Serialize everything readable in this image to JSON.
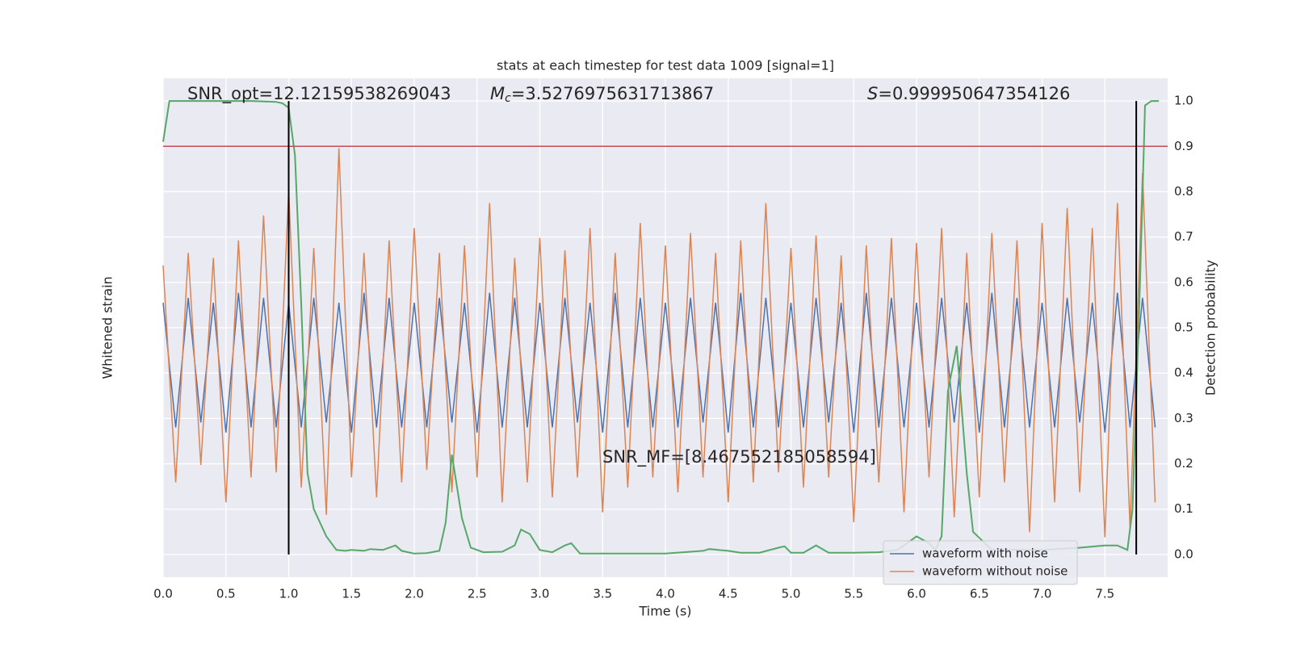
{
  "chart_data": {
    "type": "line",
    "title": "stats at each timestep for test data 1009 [signal=1]",
    "xlabel": "Time (s)",
    "ylabel": "Whitened strain",
    "y2label": "Detection probability",
    "xlim": [
      0,
      8.0
    ],
    "ylim": [
      -1,
      1
    ],
    "y2lim": [
      -0.05,
      1.05
    ],
    "xticks": [
      {
        "value": 0,
        "label": "0.0"
      },
      0.5,
      {
        "value": 1,
        "label": "1.0"
      },
      1.5,
      {
        "value": 2,
        "label": "2.0"
      },
      2.5,
      {
        "value": 3,
        "label": "3.0"
      },
      3.5,
      {
        "value": 4,
        "label": "4.0"
      },
      4.5,
      {
        "value": 5,
        "label": "5.0"
      },
      5.5,
      {
        "value": 6,
        "label": "6.0"
      },
      6.5,
      {
        "value": 7,
        "label": "7.0"
      },
      7.5
    ],
    "y2ticks": [
      {
        "value": 0,
        "label": "0.0"
      },
      0.1,
      0.2,
      0.3,
      0.4,
      0.5,
      0.6,
      0.7,
      0.8,
      0.9,
      {
        "value": 1,
        "label": "1.0"
      }
    ],
    "grid": true,
    "legend": "lower right",
    "series": [
      {
        "name": "waveform with noise",
        "color": "#4c72b0",
        "x": [
          0,
          0.1,
          0.2,
          0.3,
          0.4,
          0.5,
          0.6,
          0.7,
          0.8,
          0.9,
          1,
          1.1,
          1.2,
          1.3,
          1.4,
          1.5,
          1.6,
          1.7,
          1.8,
          1.9,
          2,
          2.1,
          2.2,
          2.3,
          2.4,
          2.5,
          2.6,
          2.7,
          2.8,
          2.9,
          3,
          3.1,
          3.2,
          3.3,
          3.4,
          3.5,
          3.6,
          3.7,
          3.8,
          3.9,
          4,
          4.1,
          4.2,
          4.3,
          4.4,
          4.5,
          4.6,
          4.7,
          4.8,
          4.9,
          5,
          5.1,
          5.2,
          5.3,
          5.4,
          5.5,
          5.6,
          5.7,
          5.8,
          5.9,
          6,
          6.1,
          6.2,
          6.3,
          6.4,
          6.5,
          6.6,
          6.7,
          6.8,
          6.9,
          7,
          7.1,
          7.2,
          7.3,
          7.4,
          7.5,
          7.6,
          7.7,
          7.8,
          7.9
        ],
        "values": [
          0.1,
          -0.4,
          0.12,
          -0.38,
          0.1,
          -0.42,
          0.14,
          -0.4,
          0.12,
          -0.4,
          0.1,
          -0.4,
          0.12,
          -0.38,
          0.1,
          -0.42,
          0.14,
          -0.4,
          0.12,
          -0.4,
          0.1,
          -0.4,
          0.12,
          -0.38,
          0.1,
          -0.42,
          0.14,
          -0.4,
          0.12,
          -0.4,
          0.1,
          -0.4,
          0.12,
          -0.38,
          0.1,
          -0.42,
          0.14,
          -0.4,
          0.12,
          -0.4,
          0.1,
          -0.4,
          0.12,
          -0.38,
          0.1,
          -0.42,
          0.14,
          -0.4,
          0.12,
          -0.4,
          0.1,
          -0.4,
          0.12,
          -0.38,
          0.1,
          -0.42,
          0.14,
          -0.4,
          0.12,
          -0.4,
          0.1,
          -0.4,
          0.12,
          -0.38,
          0.1,
          -0.42,
          0.14,
          -0.4,
          0.12,
          -0.4,
          0.1,
          -0.4,
          0.12,
          -0.38,
          0.1,
          -0.42,
          0.14,
          -0.4,
          0.12,
          -0.4
        ]
      },
      {
        "name": "waveform without noise",
        "color": "#dd8452",
        "x": [
          0,
          0.1,
          0.2,
          0.3,
          0.4,
          0.5,
          0.6,
          0.7,
          0.8,
          0.9,
          1,
          1.1,
          1.2,
          1.3,
          1.4,
          1.5,
          1.6,
          1.7,
          1.8,
          1.9,
          2,
          2.1,
          2.2,
          2.3,
          2.4,
          2.5,
          2.6,
          2.7,
          2.8,
          2.9,
          3,
          3.1,
          3.2,
          3.3,
          3.4,
          3.5,
          3.6,
          3.7,
          3.8,
          3.9,
          4,
          4.1,
          4.2,
          4.3,
          4.4,
          4.5,
          4.6,
          4.7,
          4.8,
          4.9,
          5,
          5.1,
          5.2,
          5.3,
          5.4,
          5.5,
          5.6,
          5.7,
          5.8,
          5.9,
          6,
          6.1,
          6.2,
          6.3,
          6.4,
          6.5,
          6.6,
          6.7,
          6.8,
          6.9,
          7,
          7.1,
          7.2,
          7.3,
          7.4,
          7.5,
          7.6,
          7.7,
          7.8,
          7.9
        ],
        "values": [
          0.25,
          -0.62,
          0.3,
          -0.55,
          0.28,
          -0.7,
          0.35,
          -0.6,
          0.45,
          -0.58,
          0.55,
          -0.64,
          0.32,
          -0.75,
          0.72,
          -0.6,
          0.3,
          -0.68,
          0.35,
          -0.62,
          0.4,
          -0.57,
          0.3,
          -0.66,
          0.33,
          -0.6,
          0.5,
          -0.7,
          0.28,
          -0.62,
          0.36,
          -0.68,
          0.31,
          -0.6,
          0.4,
          -0.74,
          0.3,
          -0.64,
          0.42,
          -0.6,
          0.33,
          -0.66,
          0.38,
          -0.6,
          0.3,
          -0.7,
          0.35,
          -0.62,
          0.5,
          -0.58,
          0.32,
          -0.64,
          0.37,
          -0.6,
          0.29,
          -0.78,
          0.33,
          -0.62,
          0.36,
          -0.74,
          0.34,
          -0.6,
          0.4,
          -0.76,
          0.3,
          -0.68,
          0.38,
          -0.62,
          0.35,
          -0.82,
          0.42,
          -0.7,
          0.48,
          -0.66,
          0.4,
          -0.84,
          0.5,
          -0.8,
          0.62,
          -0.7
        ]
      },
      {
        "color": "#55a868",
        "axis": "y2",
        "x": [
          0,
          0.05,
          0.1,
          0.3,
          0.5,
          0.7,
          0.9,
          0.95,
          1,
          1.05,
          1.1,
          1.15,
          1.2,
          1.3,
          1.38,
          1.45,
          1.5,
          1.6,
          1.65,
          1.75,
          1.85,
          1.9,
          2,
          2.1,
          2.2,
          2.25,
          2.3,
          2.38,
          2.45,
          2.55,
          2.7,
          2.8,
          2.85,
          2.92,
          3,
          3.1,
          3.2,
          3.25,
          3.32,
          3.5,
          4,
          4.3,
          4.35,
          4.5,
          4.6,
          4.75,
          4.9,
          4.95,
          5,
          5.1,
          5.2,
          5.3,
          5.5,
          5.7,
          5.85,
          6,
          6.1,
          6.15,
          6.2,
          6.25,
          6.32,
          6.4,
          6.45,
          6.6,
          7,
          7.3,
          7.5,
          7.6,
          7.68,
          7.72,
          7.78,
          7.82,
          7.87,
          7.93
        ],
        "values": [
          0.91,
          1,
          1,
          1,
          1,
          1,
          0.998,
          0.995,
          0.985,
          0.88,
          0.55,
          0.18,
          0.1,
          0.04,
          0.01,
          0.008,
          0.01,
          0.008,
          0.012,
          0.01,
          0.02,
          0.008,
          0.002,
          0.003,
          0.008,
          0.07,
          0.22,
          0.08,
          0.015,
          0.005,
          0.006,
          0.02,
          0.055,
          0.045,
          0.01,
          0.005,
          0.02,
          0.025,
          0.002,
          0.002,
          0.002,
          0.008,
          0.012,
          0.008,
          0.004,
          0.004,
          0.015,
          0.018,
          0.004,
          0.004,
          0.02,
          0.004,
          0.004,
          0.005,
          0.01,
          0.04,
          0.025,
          0.01,
          0.04,
          0.36,
          0.46,
          0.18,
          0.05,
          0.01,
          0.01,
          0.015,
          0.02,
          0.02,
          0.01,
          0.1,
          0.6,
          0.99,
          1,
          1
        ]
      }
    ],
    "vlines": {
      "color": "#000000",
      "x": [
        1.0,
        7.75
      ],
      "ymin": 0,
      "ymax": 1
    },
    "hline": {
      "color": "#c44e52",
      "y": 0.9
    },
    "annotations": [
      {
        "text": "SNR_opt=12.12159538269043"
      },
      {
        "symbol": "M",
        "subscript": "c",
        "text": "=3.5276975631713867"
      },
      {
        "symbol": "S",
        "text": "=0.999950647354126"
      },
      {
        "text": "SNR_MF=[8.467552185058594]"
      }
    ]
  }
}
